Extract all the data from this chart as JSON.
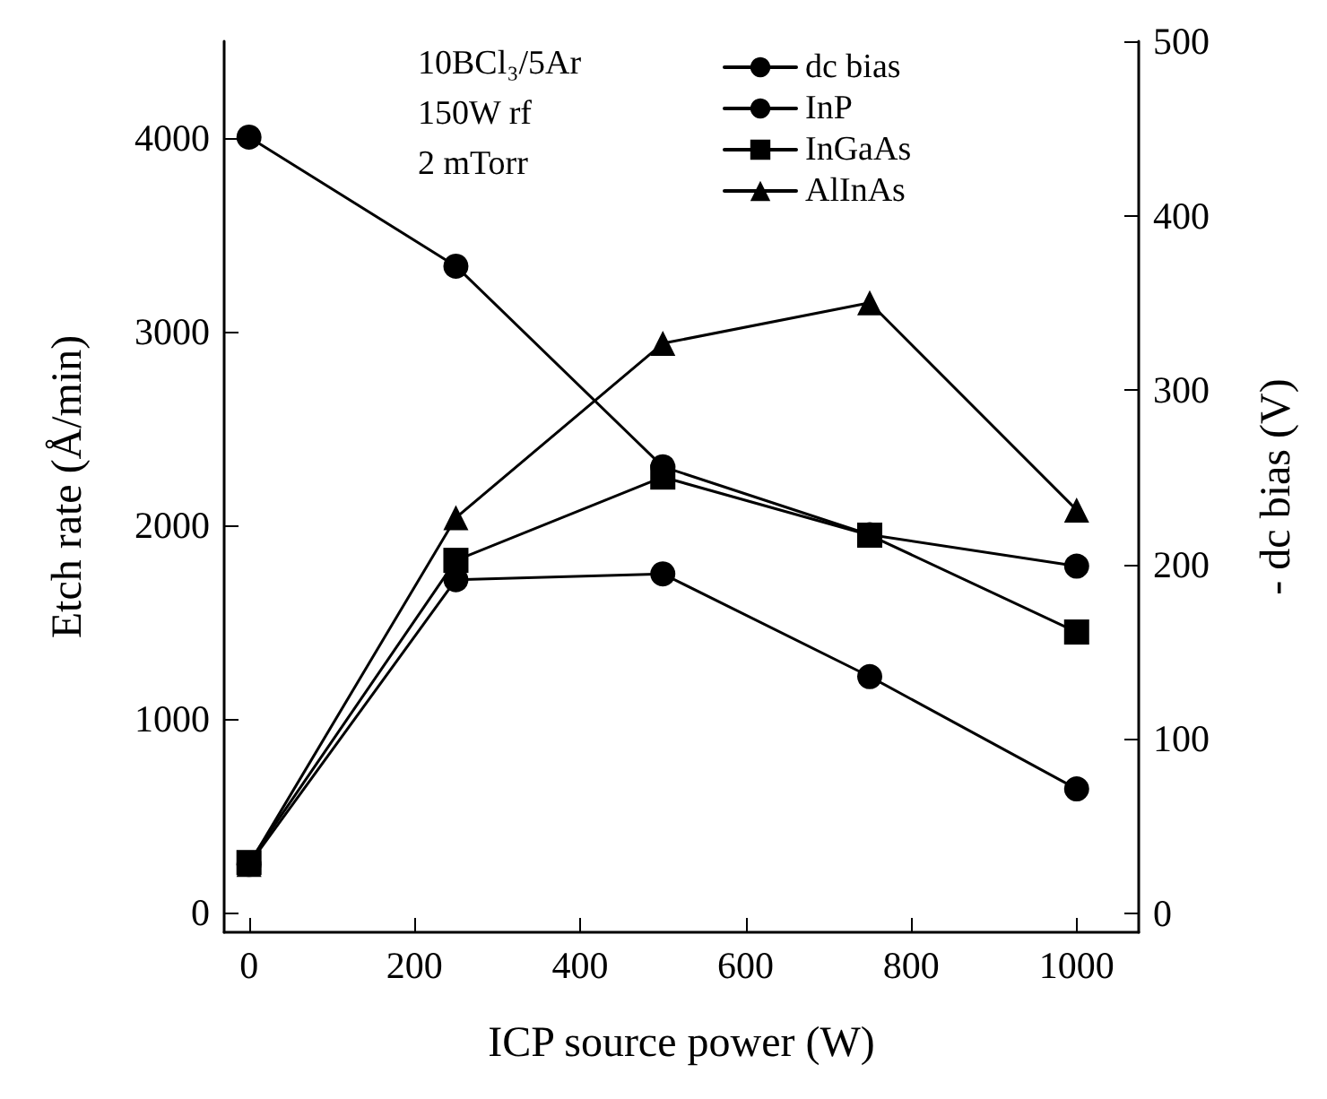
{
  "chart_data": {
    "type": "line",
    "xlabel": "ICP source power (W)",
    "ylabel": "Etch rate (Å/min)",
    "y2label": "- dc bias (V)",
    "annotations": [
      "10BCl₃/5Ar",
      "150W rf",
      "2 mTorr"
    ],
    "xlim": [
      -30,
      1075
    ],
    "xticks": [
      0,
      200,
      400,
      600,
      800,
      1000
    ],
    "ylim": [
      -100,
      4500
    ],
    "yticks": [
      0,
      1000,
      2000,
      3000,
      4000
    ],
    "y2lim": [
      -11,
      500
    ],
    "y2ticks": [
      0,
      100,
      200,
      300,
      400,
      500
    ],
    "grid": false,
    "legend": "top right",
    "line_style": "solid",
    "series": [
      {
        "name": "dc bias",
        "color": "#000000",
        "axis": "y2",
        "marker": "circle",
        "x": [
          0,
          250,
          500,
          750,
          1000
        ],
        "values": [
          445,
          371,
          256,
          217,
          199
        ]
      },
      {
        "name": "InP",
        "color": "#000000",
        "marker": "circle",
        "x": [
          0,
          250,
          500,
          750,
          1000
        ],
        "values": [
          250,
          1720,
          1750,
          1220,
          640
        ]
      },
      {
        "name": "InGaAs",
        "color": "#000000",
        "marker": "square",
        "x": [
          0,
          250,
          500,
          750,
          1000
        ],
        "values": [
          260,
          1820,
          2250,
          1950,
          1450
        ]
      },
      {
        "name": "AlInAs",
        "color": "#000000",
        "marker": "triangle",
        "x": [
          0,
          250,
          500,
          750,
          1000
        ],
        "values": [
          250,
          2040,
          2940,
          3150,
          2080
        ]
      }
    ]
  }
}
